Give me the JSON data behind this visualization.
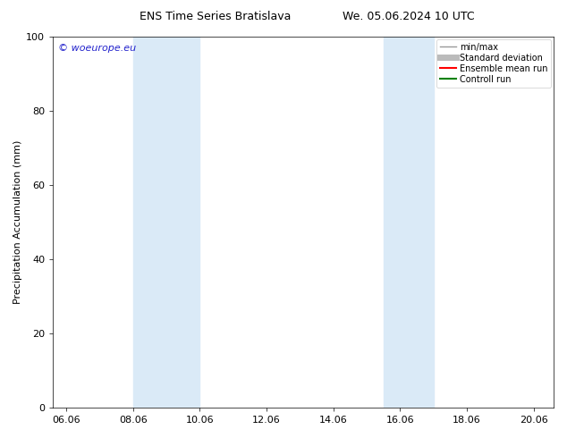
{
  "title_left": "ENS Time Series Bratislava",
  "title_right": "We. 05.06.2024 10 UTC",
  "ylabel": "Precipitation Accumulation (mm)",
  "ylim": [
    0,
    100
  ],
  "yticks": [
    0,
    20,
    40,
    60,
    80,
    100
  ],
  "xmin": 5.6,
  "xmax": 20.6,
  "xtick_labels": [
    "06.06",
    "08.06",
    "10.06",
    "12.06",
    "14.06",
    "16.06",
    "18.06",
    "20.06"
  ],
  "xtick_positions": [
    6.0,
    8.0,
    10.0,
    12.0,
    14.0,
    16.0,
    18.0,
    20.0
  ],
  "shaded_bands": [
    {
      "xmin": 8.0,
      "xmax": 10.0
    },
    {
      "xmin": 15.5,
      "xmax": 17.0
    }
  ],
  "shade_color": "#daeaf7",
  "watermark_text": "© woeurope.eu",
  "watermark_color": "#2222cc",
  "legend_items": [
    {
      "label": "min/max",
      "color": "#999999",
      "lw": 1.0,
      "linestyle": "-"
    },
    {
      "label": "Standard deviation",
      "color": "#bbbbbb",
      "lw": 5,
      "linestyle": "-"
    },
    {
      "label": "Ensemble mean run",
      "color": "#ff0000",
      "lw": 1.5,
      "linestyle": "-"
    },
    {
      "label": "Controll run",
      "color": "#008000",
      "lw": 1.5,
      "linestyle": "-"
    }
  ],
  "bg_color": "#ffffff",
  "title_fontsize": 9,
  "axis_fontsize": 8,
  "tick_fontsize": 8,
  "legend_fontsize": 7,
  "watermark_fontsize": 8
}
